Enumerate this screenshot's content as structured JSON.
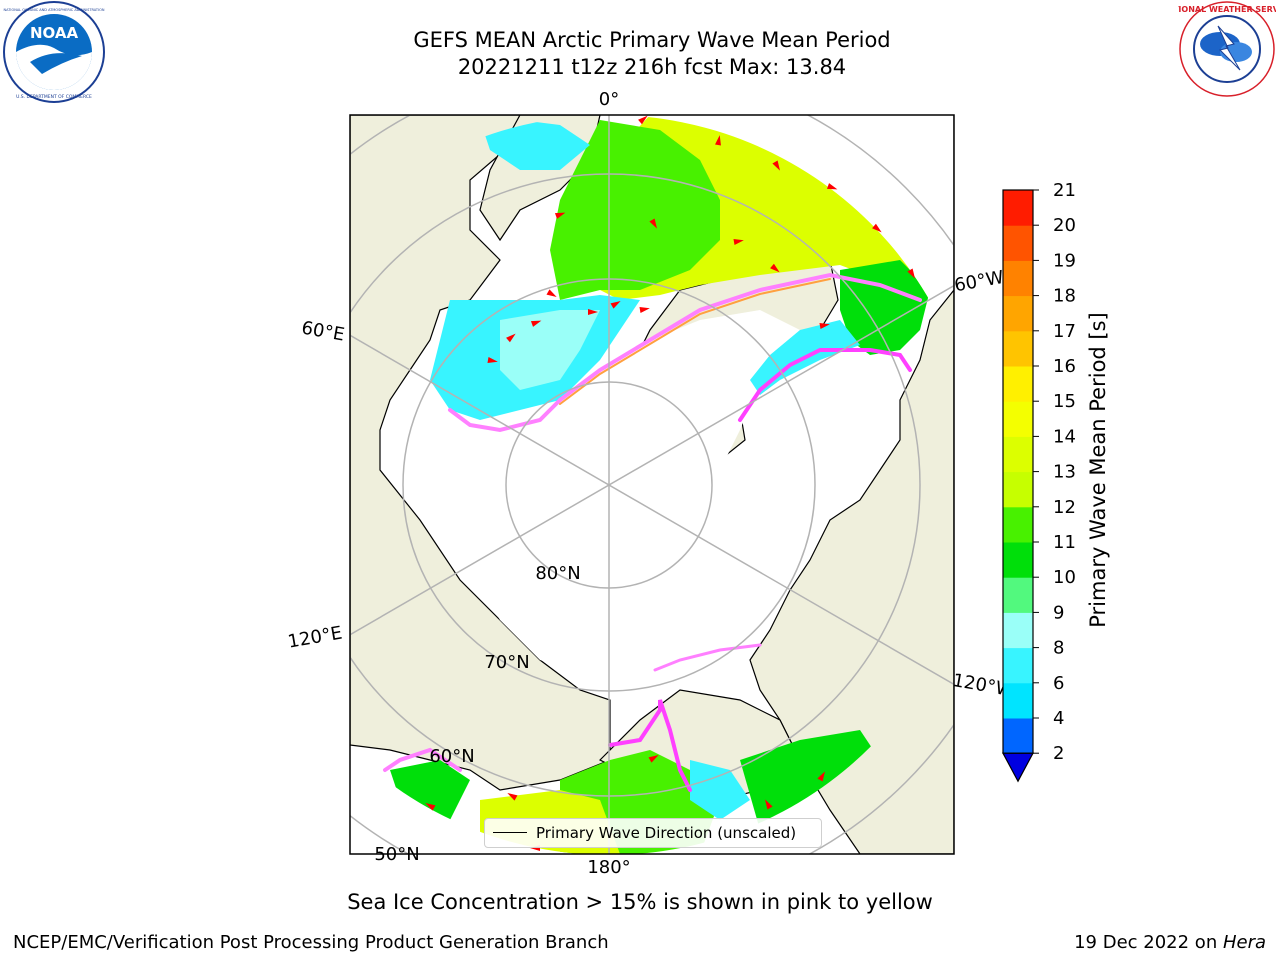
{
  "title": {
    "line1": "GEFS MEAN Arctic Primary Wave Mean Period",
    "line2": "20221211 t12z 216h fcst   Max: 13.84"
  },
  "logos": {
    "left": {
      "text": "NOAA",
      "ring_top": "NATIONAL OCEANIC AND ATMOSPHERIC ADMINISTRATION",
      "ring_bottom": "U.S. DEPARTMENT OF COMMERCE",
      "color": "#0a6cc4"
    },
    "right": {
      "ring": "NATIONAL WEATHER SERVICE",
      "color": "#d8202a"
    }
  },
  "map": {
    "projection": "north-polar-stereographic",
    "land_color": "#efefdc",
    "ice_color": "#ffffff",
    "longitude_labels": {
      "top": "0°",
      "left_upper": "60°E",
      "left_lower": "120°E",
      "bottom": "180°",
      "right_lower": "120°W",
      "right_upper": "60°W"
    },
    "latitude_labels": {
      "lat80": "80°N",
      "lat70": "70°N",
      "lat60": "60°N",
      "lat50": "50°N"
    },
    "legend": {
      "label": "Primary Wave Direction (unscaled)"
    },
    "arrow_color": "#ff0000"
  },
  "colorbar": {
    "label": "Primary Wave Mean Period [s]",
    "levels": [
      2,
      4,
      6,
      8,
      9,
      10,
      11,
      12,
      13,
      14,
      15,
      16,
      17,
      18,
      19,
      20,
      21
    ],
    "colors": [
      "#0066ff",
      "#00e4ff",
      "#38f4ff",
      "#9afff8",
      "#52f97e",
      "#00df0a",
      "#48f100",
      "#c6ff00",
      "#dcff00",
      "#f4ff00",
      "#fff000",
      "#ffc400",
      "#ffa500",
      "#ff8200",
      "#ff5400",
      "#ff1c00"
    ],
    "extend_color": "#0000e0"
  },
  "caption": "Sea Ice Concentration > 15% is shown in pink to yellow",
  "footer": {
    "left": "NCEP/EMC/Verification Post Processing Product Generation Branch",
    "right_prefix": "19 Dec 2022 on ",
    "right_host": "Hera"
  }
}
